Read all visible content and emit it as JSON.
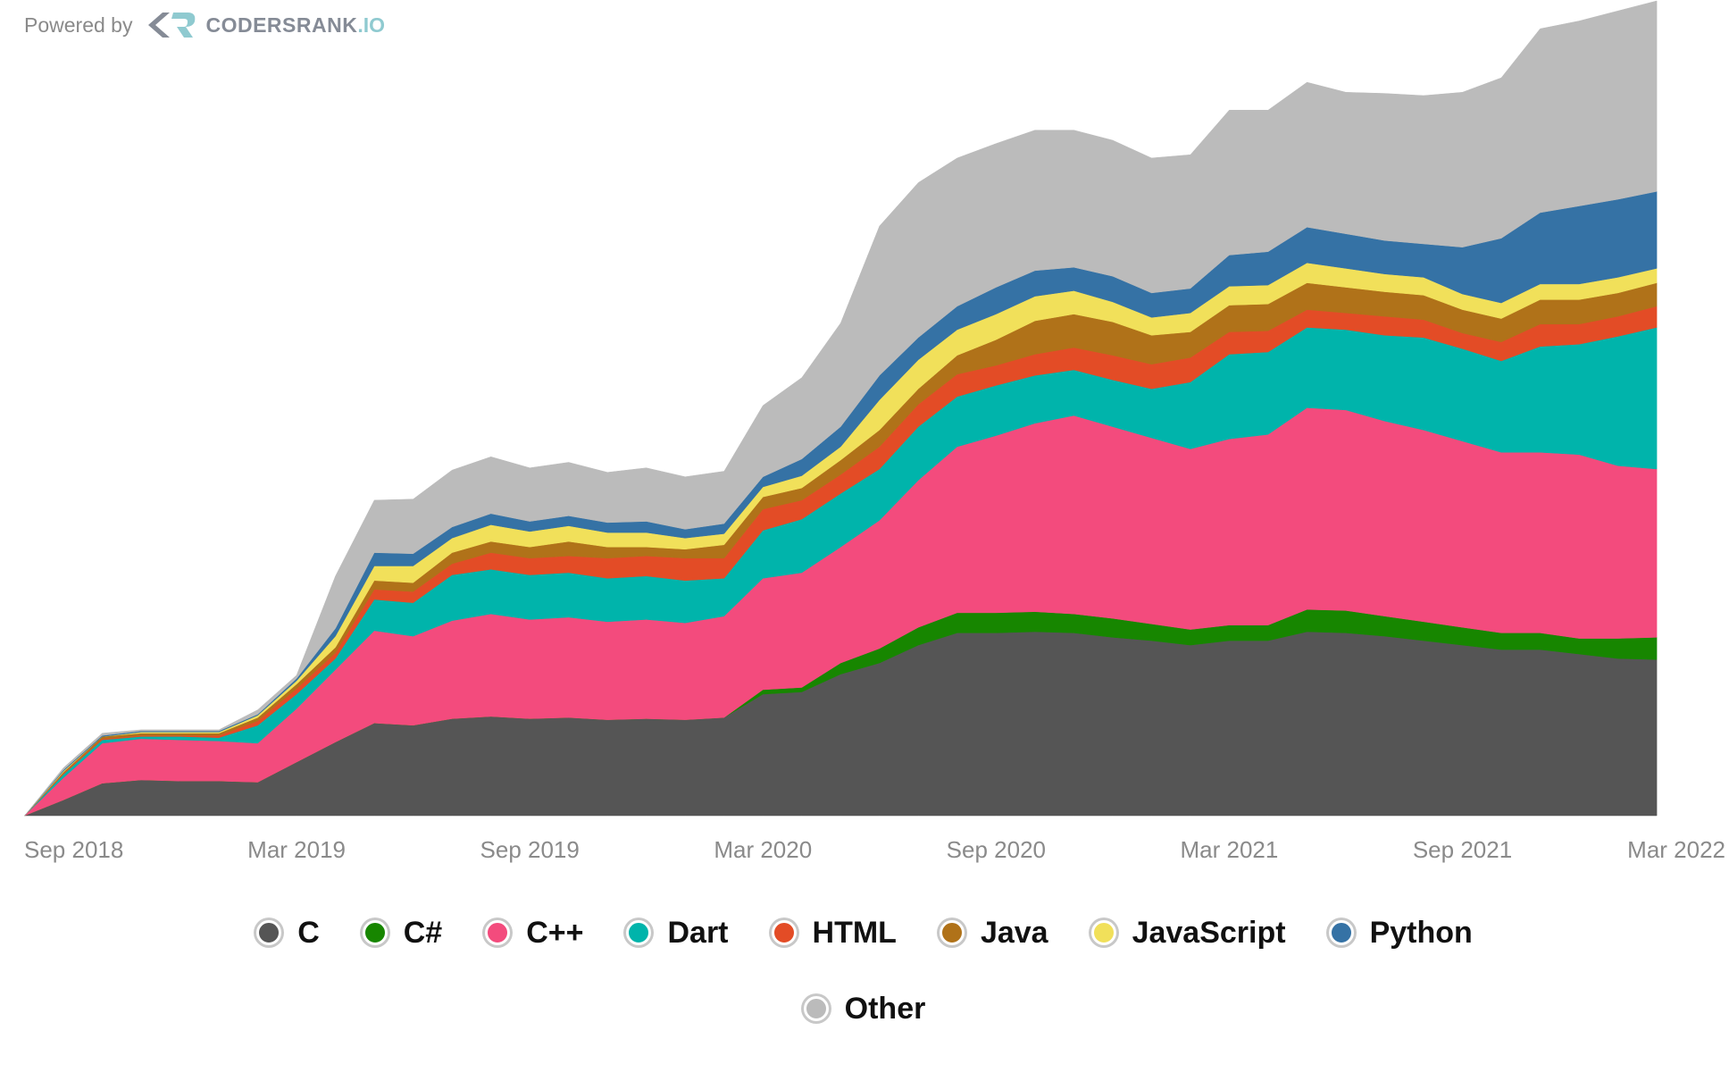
{
  "header": {
    "powered_by": "Powered by",
    "brand": "CODERSRANK",
    "brand_suffix": ".IO"
  },
  "chart_data": {
    "type": "stacked-area",
    "x": [
      "2018-08",
      "2018-09",
      "2018-10",
      "2018-11",
      "2018-12",
      "2019-01",
      "2019-02",
      "2019-03",
      "2019-04",
      "2019-05",
      "2019-06",
      "2019-07",
      "2019-08",
      "2019-09",
      "2019-10",
      "2019-11",
      "2019-12",
      "2020-01",
      "2020-02",
      "2020-03",
      "2020-04",
      "2020-05",
      "2020-06",
      "2020-07",
      "2020-08",
      "2020-09",
      "2020-10",
      "2020-11",
      "2020-12",
      "2021-01",
      "2021-02",
      "2021-03",
      "2021-04",
      "2021-05",
      "2021-06",
      "2021-07",
      "2021-08",
      "2021-09",
      "2021-10",
      "2021-11",
      "2021-12",
      "2022-01",
      "2022-02"
    ],
    "xlim": [
      "2018-08",
      "2022-03"
    ],
    "xticks": [
      {
        "value": "2018-09",
        "label": "Sep 2018"
      },
      {
        "value": "2019-03",
        "label": "Mar 2019"
      },
      {
        "value": "2019-09",
        "label": "Sep 2019"
      },
      {
        "value": "2020-03",
        "label": "Mar 2020"
      },
      {
        "value": "2020-09",
        "label": "Sep 2020"
      },
      {
        "value": "2021-03",
        "label": "Mar 2021"
      },
      {
        "value": "2021-09",
        "label": "Sep 2021"
      },
      {
        "value": "2022-03",
        "label": "Mar 2022"
      }
    ],
    "series": [
      {
        "name": "C",
        "color": "#555555",
        "values": [
          0,
          14,
          29,
          32,
          31,
          31,
          30,
          48,
          66,
          83,
          81,
          87,
          89,
          87,
          88,
          86,
          87,
          86,
          88,
          109,
          111,
          127,
          137,
          153,
          164,
          164,
          165,
          164,
          160,
          157,
          153,
          157,
          157,
          165,
          164,
          161,
          157,
          153,
          149,
          149,
          145,
          141,
          140
        ]
      },
      {
        "name": "C#",
        "color": "#178600",
        "values": [
          0,
          0,
          0,
          0,
          0,
          0,
          0,
          0,
          0,
          0,
          0,
          0,
          0,
          0,
          0,
          0,
          0,
          0,
          0,
          4,
          4,
          10,
          13,
          16,
          18,
          18,
          18,
          17,
          17,
          15,
          14,
          14,
          14,
          20,
          20,
          18,
          17,
          16,
          15,
          15,
          14,
          18,
          20
        ]
      },
      {
        "name": "C++",
        "color": "#f34b7d",
        "values": [
          0,
          20,
          36,
          37,
          37,
          36,
          35,
          48,
          65,
          83,
          80,
          88,
          92,
          89,
          90,
          88,
          89,
          87,
          91,
          100,
          103,
          104,
          115,
          132,
          149,
          159,
          169,
          178,
          172,
          167,
          162,
          167,
          171,
          181,
          180,
          175,
          172,
          167,
          162,
          162,
          165,
          155,
          151
        ]
      },
      {
        "name": "Dart",
        "color": "#00b4ab",
        "values": [
          0,
          3,
          3,
          2,
          3,
          3,
          16,
          13,
          10,
          28,
          30,
          41,
          40,
          40,
          40,
          39,
          39,
          38,
          34,
          43,
          48,
          48,
          46,
          48,
          45,
          45,
          43,
          41,
          42,
          44,
          60,
          76,
          74,
          72,
          72,
          77,
          83,
          83,
          82,
          95,
          99,
          116,
          127
        ]
      },
      {
        "name": "HTML",
        "color": "#e34c26",
        "values": [
          0,
          1,
          1,
          1,
          1,
          2,
          4,
          5,
          5,
          9,
          10,
          10,
          15,
          15,
          15,
          18,
          18,
          20,
          18,
          19,
          17,
          17,
          20,
          20,
          20,
          18,
          19,
          20,
          22,
          22,
          22,
          20,
          19,
          16,
          15,
          17,
          16,
          14,
          17,
          20,
          18,
          18,
          19
        ]
      },
      {
        "name": "Java",
        "color": "#b07219",
        "values": [
          0,
          1,
          2,
          2,
          2,
          2,
          3,
          4,
          5,
          8,
          8,
          10,
          10,
          10,
          13,
          10,
          8,
          8,
          12,
          11,
          11,
          13,
          15,
          14,
          17,
          23,
          30,
          30,
          30,
          26,
          23,
          24,
          24,
          24,
          23,
          22,
          22,
          21,
          21,
          22,
          22,
          21,
          21
        ]
      },
      {
        "name": "JavaScript",
        "color": "#f1e05a",
        "values": [
          0,
          1,
          0,
          1,
          1,
          1,
          2,
          3,
          10,
          13,
          15,
          13,
          15,
          14,
          14,
          13,
          13,
          10,
          10,
          9,
          11,
          12,
          27,
          26,
          23,
          23,
          22,
          21,
          18,
          16,
          17,
          17,
          17,
          18,
          17,
          16,
          16,
          14,
          14,
          14,
          14,
          14,
          13
        ]
      },
      {
        "name": "Python",
        "color": "#3572a5",
        "values": [
          0,
          1,
          1,
          1,
          1,
          1,
          1,
          2,
          7,
          12,
          11,
          10,
          10,
          9,
          9,
          9,
          10,
          8,
          9,
          9,
          15,
          18,
          22,
          20,
          21,
          24,
          23,
          21,
          23,
          22,
          22,
          28,
          30,
          32,
          31,
          30,
          30,
          42,
          58,
          64,
          70,
          70,
          69
        ]
      },
      {
        "name": "Other",
        "color": "#bbbbbb",
        "values": [
          0,
          2,
          2,
          1,
          1,
          1,
          4,
          3,
          47,
          47,
          49,
          51,
          51,
          48,
          48,
          45,
          48,
          47,
          47,
          64,
          73,
          93,
          134,
          139,
          133,
          129,
          126,
          123,
          122,
          121,
          120,
          130,
          127,
          130,
          127,
          132,
          133,
          139,
          144,
          165,
          166,
          169,
          171
        ]
      }
    ]
  }
}
